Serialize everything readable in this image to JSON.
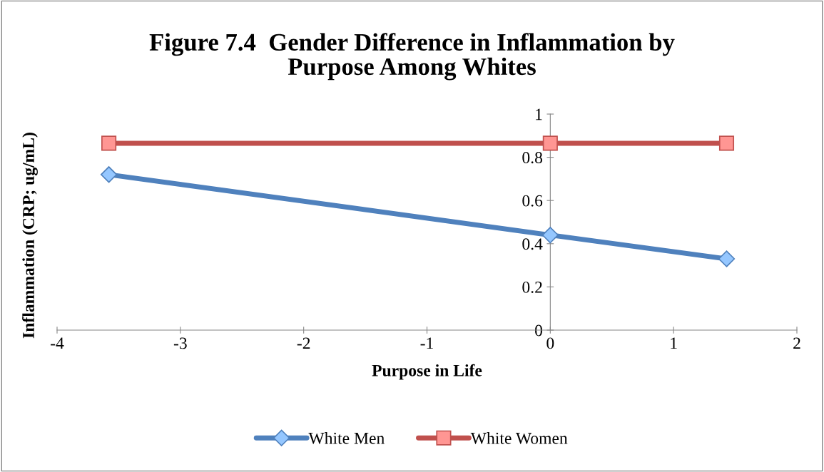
{
  "chart_data": {
    "type": "line",
    "title": "Figure 7.4  Gender Difference in Inflammation by\nPurpose Among Whites",
    "xlabel": "Purpose in Life",
    "ylabel": "Inflammation (CRP; ug/mL)",
    "xlim": [
      -4,
      2
    ],
    "xticks": [
      -4,
      -3,
      -2,
      -1,
      0,
      1,
      2
    ],
    "ylim": [
      0,
      1
    ],
    "yticks": [
      0,
      0.2,
      0.4,
      0.6,
      0.8,
      1
    ],
    "grid": false,
    "legend": "bottom",
    "series": [
      {
        "name": "White Men",
        "color": "#4f81bd",
        "marker": "diamond",
        "x": [
          -3.58,
          0,
          1.43
        ],
        "values": [
          0.72,
          0.44,
          0.33
        ]
      },
      {
        "name": "White Women",
        "color": "#c0504d",
        "marker": "square",
        "x": [
          -3.58,
          0,
          1.43
        ],
        "values": [
          0.865,
          0.865,
          0.865
        ]
      }
    ]
  }
}
